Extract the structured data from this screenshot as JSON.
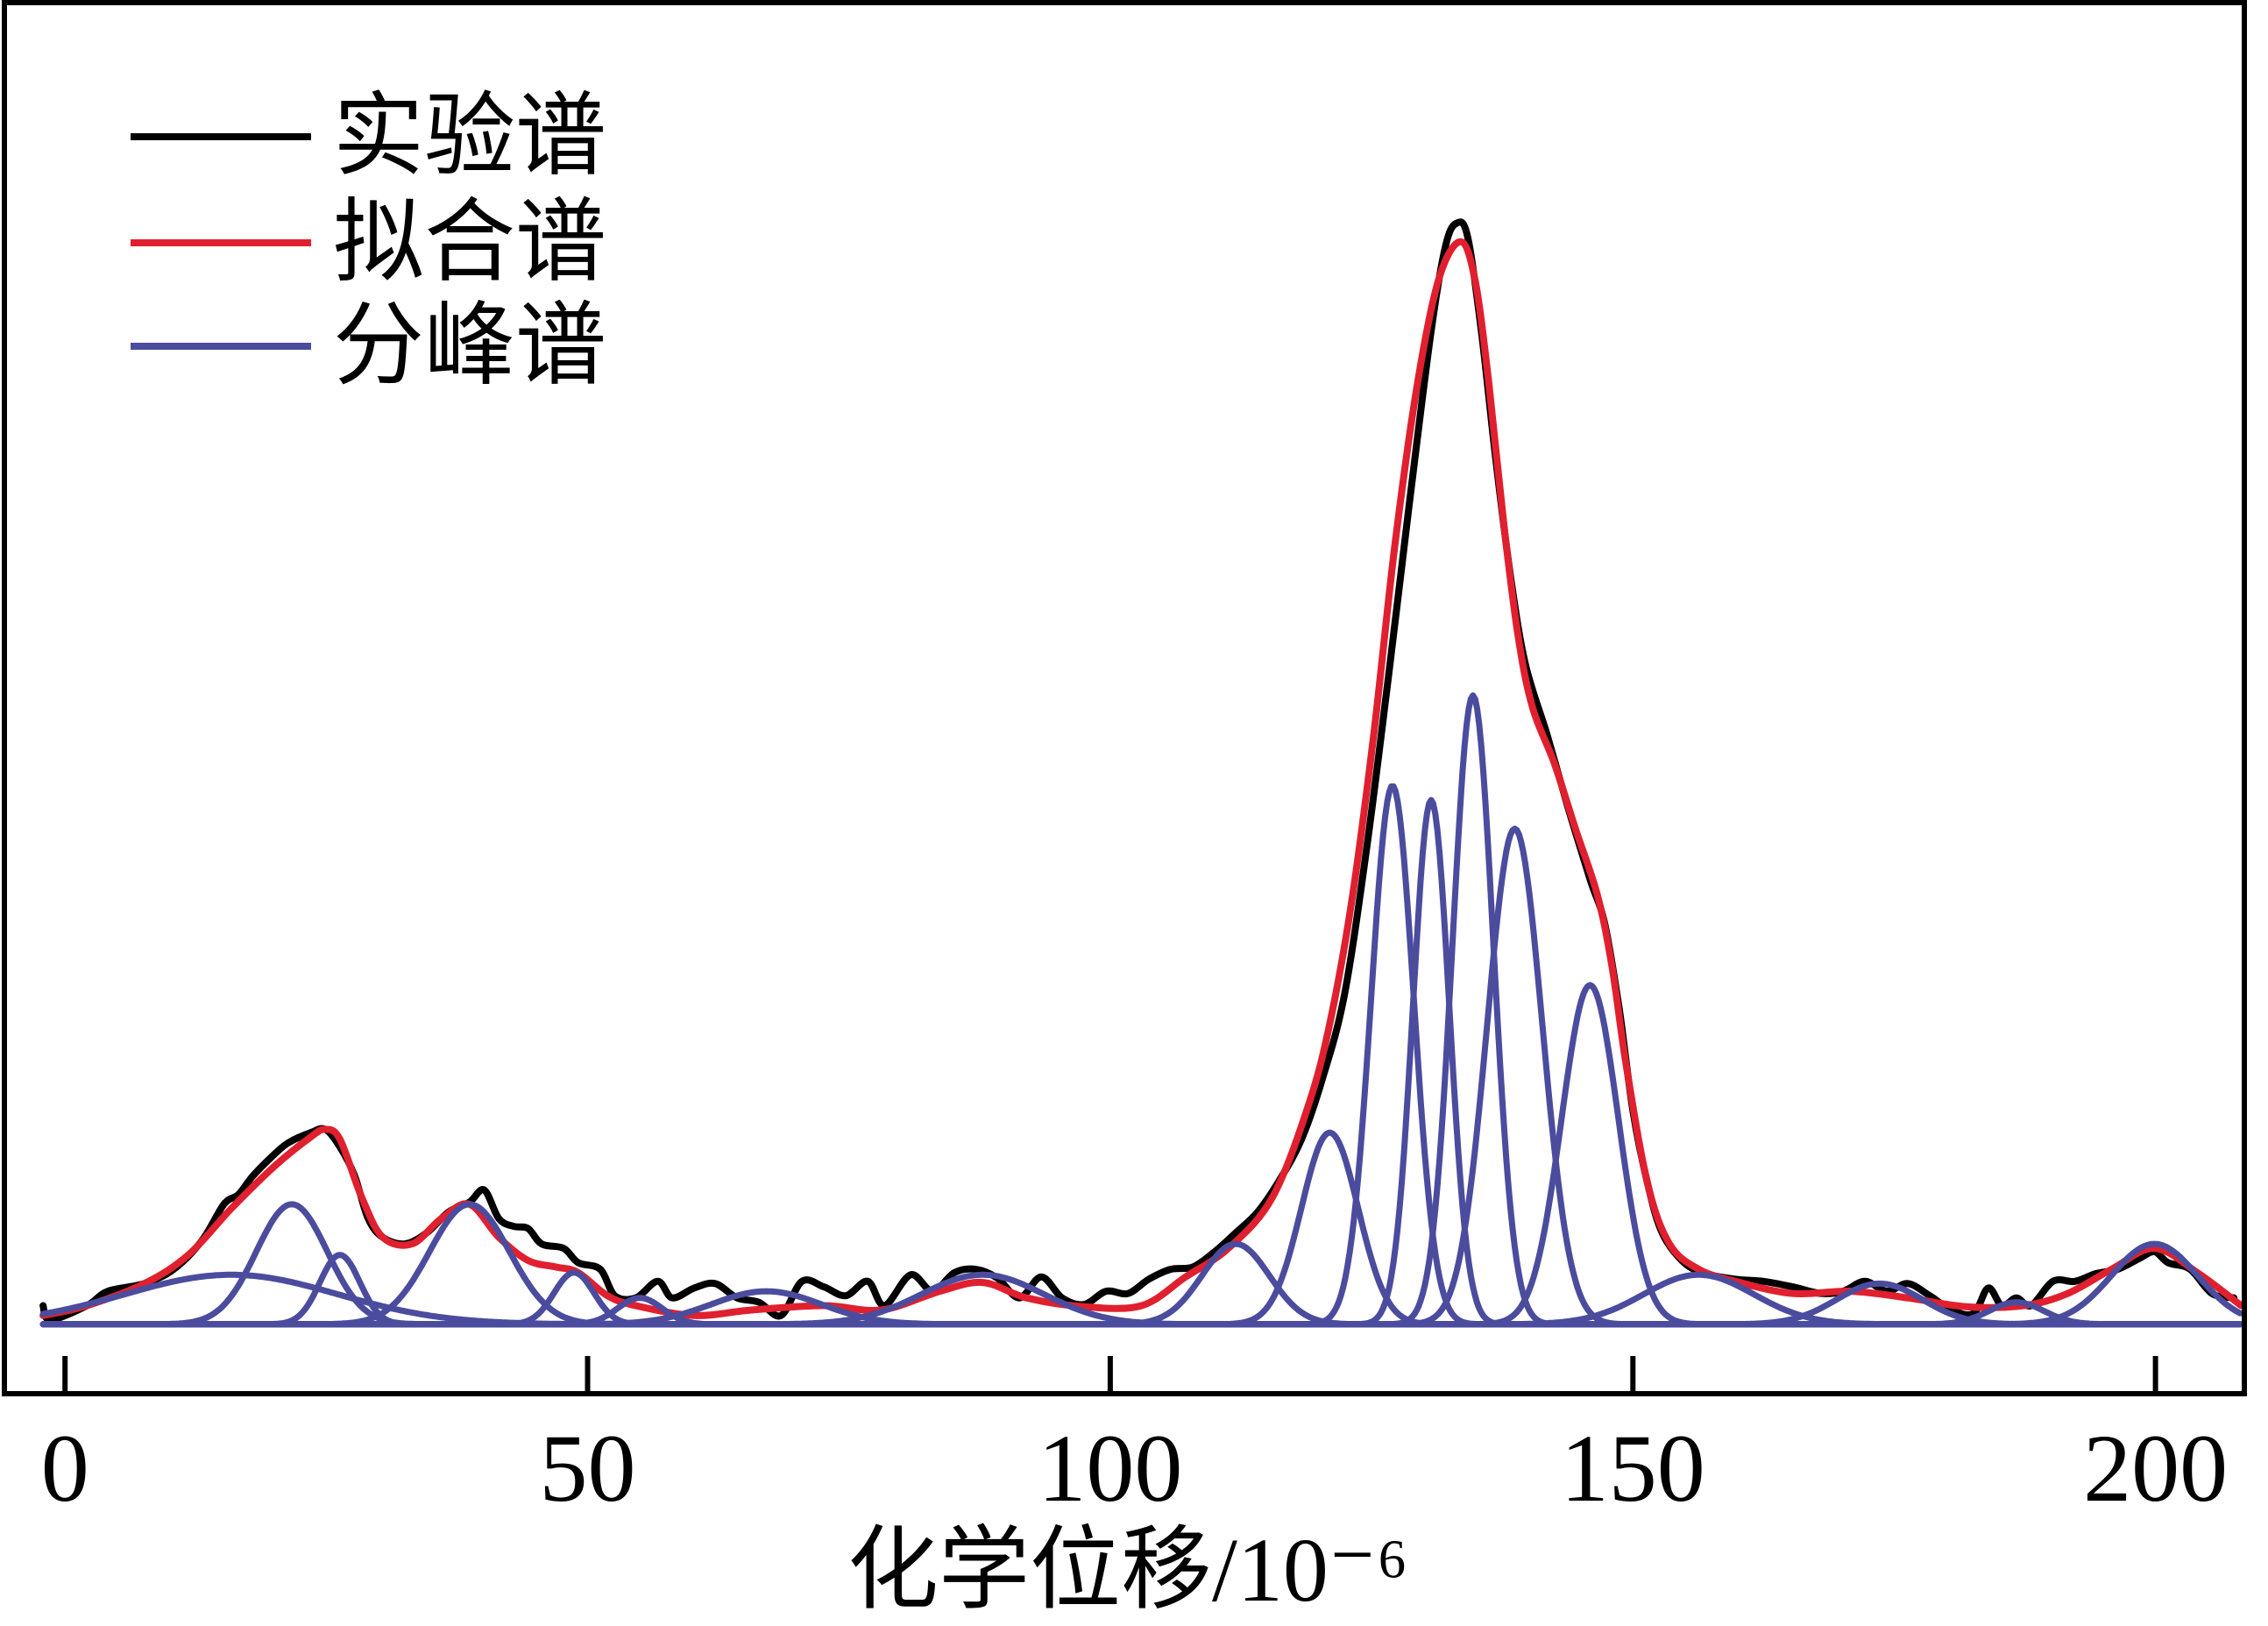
{
  "chart_data": {
    "type": "line",
    "xlabel": "化学位移/10⁻⁶",
    "xlim": [
      -5.8,
      208.5
    ],
    "ylim": [
      -0.063,
      1.2
    ],
    "xticks": [
      0,
      50,
      100,
      150,
      200
    ],
    "grid": false,
    "legend": "top-left",
    "series": [
      {
        "name": "实验谱",
        "color": "#000000",
        "x": [
          -2.1,
          -1.4,
          2.1,
          4.1,
          7.6,
          10.4,
          13.1,
          15.2,
          16.6,
          18.0,
          20.1,
          21.4,
          23.5,
          24.9,
          26.3,
          27.7,
          29.0,
          30.4,
          32.5,
          34.6,
          36.7,
          38.7,
          40.1,
          41.5,
          42.9,
          44.3,
          45.6,
          47.7,
          49.1,
          51.2,
          52.6,
          54.6,
          56.7,
          58.1,
          60.2,
          62.2,
          64.3,
          66.4,
          68.5,
          70.5,
          72.6,
          74.7,
          76.8,
          78.4,
          80.9,
          83.0,
          85.1,
          87.1,
          89.2,
          91.3,
          93.4,
          95.4,
          97.5,
          99.6,
          101.7,
          103.7,
          105.8,
          107.9,
          110.0,
          112.0,
          114.1,
          116.2,
          118.3,
          120.3,
          122.4,
          124.5,
          126.6,
          128.6,
          130.7,
          132.1,
          133.2,
          134.2,
          135.5,
          136.9,
          138.3,
          139.7,
          141.8,
          143.8,
          145.9,
          147.3,
          148.7,
          150.0,
          151.4,
          152.8,
          154.9,
          157.0,
          159.8,
          162.5,
          165.3,
          168.0,
          170.1,
          172.2,
          174.3,
          176.3,
          178.4,
          180.5,
          182.6,
          184.0,
          185.3,
          186.7,
          188.1,
          190.2,
          192.3,
          194.3,
          196.4,
          198.5,
          199.9,
          201.2,
          203.3,
          205.4,
          207.5
        ],
        "y": [
          0.017,
          0.004,
          0.017,
          0.03,
          0.037,
          0.05,
          0.076,
          0.109,
          0.118,
          0.135,
          0.155,
          0.165,
          0.174,
          0.177,
          0.161,
          0.135,
          0.096,
          0.079,
          0.073,
          0.083,
          0.102,
          0.111,
          0.122,
          0.096,
          0.089,
          0.087,
          0.073,
          0.069,
          0.056,
          0.05,
          0.026,
          0.024,
          0.039,
          0.024,
          0.033,
          0.037,
          0.024,
          0.02,
          0.008,
          0.039,
          0.034,
          0.026,
          0.039,
          0.017,
          0.045,
          0.03,
          0.047,
          0.05,
          0.042,
          0.024,
          0.043,
          0.024,
          0.018,
          0.03,
          0.028,
          0.041,
          0.05,
          0.052,
          0.066,
          0.083,
          0.102,
          0.131,
          0.168,
          0.223,
          0.299,
          0.43,
          0.587,
          0.744,
          0.902,
          0.98,
          1.0,
          0.987,
          0.902,
          0.784,
          0.679,
          0.6,
          0.535,
          0.469,
          0.404,
          0.364,
          0.286,
          0.194,
          0.128,
          0.083,
          0.056,
          0.046,
          0.041,
          0.039,
          0.034,
          0.028,
          0.03,
          0.039,
          0.03,
          0.037,
          0.026,
          0.013,
          0.01,
          0.033,
          0.017,
          0.024,
          0.017,
          0.039,
          0.039,
          0.046,
          0.05,
          0.06,
          0.066,
          0.056,
          0.05,
          0.028,
          0.024
        ]
      },
      {
        "name": "拟合谱",
        "color": "#e0202e",
        "x": [
          -2.1,
          2.1,
          7.6,
          11.8,
          15.9,
          20.1,
          23.5,
          24.9,
          26.3,
          28.4,
          30.4,
          33.2,
          36.0,
          38.7,
          41.5,
          44.3,
          47.0,
          49.1,
          51.9,
          54.6,
          60.2,
          65.7,
          72.6,
          78.1,
          83.7,
          87.8,
          92.0,
          97.5,
          103.0,
          107.2,
          111.3,
          115.5,
          119.0,
          121.0,
          123.1,
          125.2,
          127.2,
          129.3,
          131.4,
          133.5,
          134.9,
          136.2,
          137.6,
          139.0,
          140.4,
          142.5,
          144.5,
          146.6,
          148.0,
          149.4,
          151.4,
          153.5,
          156.3,
          159.8,
          165.3,
          170.9,
          176.3,
          181.9,
          187.4,
          191.6,
          195.8,
          199.9,
          204.0,
          208.2
        ],
        "y": [
          0.008,
          0.017,
          0.037,
          0.063,
          0.105,
          0.144,
          0.17,
          0.177,
          0.168,
          0.115,
          0.079,
          0.073,
          0.096,
          0.109,
          0.079,
          0.058,
          0.052,
          0.047,
          0.026,
          0.017,
          0.008,
          0.013,
          0.017,
          0.013,
          0.03,
          0.038,
          0.024,
          0.016,
          0.017,
          0.043,
          0.069,
          0.115,
          0.2,
          0.273,
          0.384,
          0.535,
          0.705,
          0.849,
          0.948,
          0.983,
          0.948,
          0.856,
          0.731,
          0.626,
          0.56,
          0.509,
          0.45,
          0.39,
          0.325,
          0.233,
          0.128,
          0.073,
          0.05,
          0.039,
          0.028,
          0.03,
          0.024,
          0.016,
          0.017,
          0.028,
          0.05,
          0.069,
          0.047,
          0.017
        ]
      },
      {
        "name": "分峰谱",
        "color": "#4b4c9e",
        "peaks": [
          {
            "center": 15.9,
            "height": 0.045,
            "fwhm": 24.0
          },
          {
            "center": 21.7,
            "height": 0.109,
            "fwhm": 8.0
          },
          {
            "center": 26.3,
            "height": 0.063,
            "fwhm": 4.5
          },
          {
            "center": 38.7,
            "height": 0.109,
            "fwhm": 9.0
          },
          {
            "center": 48.7,
            "height": 0.047,
            "fwhm": 4.5
          },
          {
            "center": 55.0,
            "height": 0.024,
            "fwhm": 5.0
          },
          {
            "center": 67.1,
            "height": 0.03,
            "fwhm": 12.4
          },
          {
            "center": 87.8,
            "height": 0.045,
            "fwhm": 13.8
          },
          {
            "center": 112.0,
            "height": 0.073,
            "fwhm": 7.6
          },
          {
            "center": 121.0,
            "height": 0.174,
            "fwhm": 6.4
          },
          {
            "center": 127.0,
            "height": 0.489,
            "fwhm": 4.8
          },
          {
            "center": 130.7,
            "height": 0.476,
            "fwhm": 4.1
          },
          {
            "center": 134.7,
            "height": 0.571,
            "fwhm": 4.6
          },
          {
            "center": 138.7,
            "height": 0.45,
            "fwhm": 6.2
          },
          {
            "center": 145.9,
            "height": 0.308,
            "fwhm": 6.4
          },
          {
            "center": 156.3,
            "height": 0.045,
            "fwhm": 12.4
          },
          {
            "center": 173.6,
            "height": 0.037,
            "fwhm": 9.7
          },
          {
            "center": 186.7,
            "height": 0.02,
            "fwhm": 6.2
          },
          {
            "center": 199.9,
            "height": 0.073,
            "fwhm": 9.7
          }
        ]
      }
    ]
  }
}
